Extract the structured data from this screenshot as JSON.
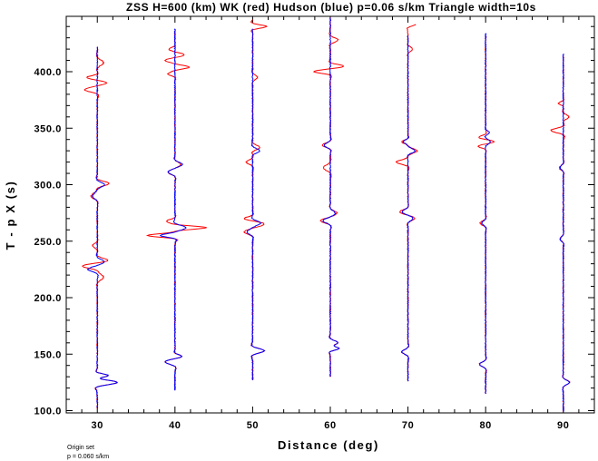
{
  "chart_data": {
    "type": "line",
    "title": "ZSS H=600 (km) WK (red) Hudson (blue) p=0.06 s/km Triangle width=10s",
    "xlabel": "Distance (deg)",
    "ylabel": "T - p X (s)",
    "xlim": [
      26,
      94
    ],
    "ylim": [
      98,
      449
    ],
    "x_ticks": [
      30,
      40,
      50,
      60,
      70,
      80,
      90
    ],
    "x_tick_labels": [
      "30",
      "40",
      "50",
      "60",
      "70",
      "80",
      "90"
    ],
    "y_ticks": [
      100,
      150,
      200,
      250,
      300,
      350,
      400
    ],
    "y_tick_labels": [
      "100.0",
      "150.0",
      "200.0",
      "250.0",
      "300.0",
      "350.0",
      "400.0"
    ],
    "grid": false,
    "footnote": [
      "Origin set",
      "p = 0.060 s/km"
    ],
    "colors": {
      "wk": "#ff0000",
      "hudson": "#0000ff",
      "axes": "#000000"
    },
    "series": [
      {
        "name": "WK (red)",
        "color": "#ff0000",
        "traces": [
          {
            "distance": 30,
            "start": 102,
            "end": 422,
            "events": [
              [
                125,
                2.6,
                4
              ],
              [
                131,
                1.6,
                3
              ],
              [
                218,
                0.8,
                5
              ],
              [
                228,
                -1.8,
                4
              ],
              [
                233,
                1.2,
                4
              ],
              [
                246,
                -0.6,
                4
              ],
              [
                290,
                -0.8,
                5
              ],
              [
                301,
                1.5,
                4
              ],
              [
                384,
                -1.6,
                4
              ],
              [
                390,
                1.0,
                3
              ],
              [
                395,
                -1.3,
                3
              ],
              [
                408,
                0.8,
                5
              ]
            ]
          },
          {
            "distance": 40,
            "start": 118,
            "end": 436,
            "events": [
              [
                143,
                -1.2,
                4
              ],
              [
                148,
                0.8,
                3
              ],
              [
                255,
                -3.5,
                3
              ],
              [
                262,
                4.0,
                3
              ],
              [
                268,
                -1.0,
                3
              ],
              [
                311,
                -0.9,
                4
              ],
              [
                318,
                0.7,
                4
              ],
              [
                398,
                -0.9,
                3
              ],
              [
                404,
                1.8,
                3
              ],
              [
                410,
                -1.2,
                3
              ],
              [
                415,
                1.1,
                3
              ],
              [
                420,
                -0.7,
                3
              ]
            ]
          },
          {
            "distance": 50,
            "start": 127,
            "end": 446,
            "events": [
              [
                153,
                1.5,
                4
              ],
              [
                258,
                -1.0,
                4
              ],
              [
                265,
                1.4,
                4
              ],
              [
                270,
                -1.0,
                3
              ],
              [
                320,
                -0.8,
                4
              ],
              [
                333,
                0.9,
                4
              ],
              [
                395,
                0.6,
                4
              ],
              [
                440,
                1.8,
                3
              ]
            ]
          },
          {
            "distance": 60,
            "start": 130,
            "end": 448,
            "events": [
              [
                155,
                1.2,
                3
              ],
              [
                160,
                1.0,
                4
              ],
              [
                268,
                -1.2,
                4
              ],
              [
                275,
                0.8,
                4
              ],
              [
                315,
                -0.9,
                5
              ],
              [
                335,
                -1.0,
                4
              ],
              [
                400,
                -2.0,
                3
              ],
              [
                405,
                1.6,
                3
              ],
              [
                428,
                1.0,
                4
              ]
            ]
          },
          {
            "distance": 70,
            "start": 126,
            "end": 442,
            "events": [
              [
                152,
                -0.8,
                4
              ],
              [
                270,
                0.8,
                4
              ],
              [
                276,
                -1.0,
                4
              ],
              [
                320,
                -1.5,
                4
              ],
              [
                330,
                1.2,
                4
              ],
              [
                338,
                -0.8,
                3
              ],
              [
                420,
                0.6,
                4
              ],
              [
                442,
                1.0,
                3
              ]
            ]
          },
          {
            "distance": 80,
            "start": 115,
            "end": 432,
            "events": [
              [
                141,
                -0.8,
                4
              ],
              [
                266,
                -0.7,
                4
              ],
              [
                334,
                -0.9,
                3
              ],
              [
                338,
                0.9,
                3
              ],
              [
                342,
                -0.8,
                3
              ]
            ]
          },
          {
            "distance": 90,
            "start": 99,
            "end": 414,
            "events": [
              [
                125,
                0.8,
                4
              ],
              [
                252,
                -0.4,
                4
              ],
              [
                315,
                -0.5,
                4
              ],
              [
                348,
                -1.6,
                4
              ],
              [
                360,
                0.7,
                4
              ],
              [
                372,
                -0.6,
                3
              ]
            ]
          }
        ]
      },
      {
        "name": "Hudson (blue)",
        "color": "#0000ff",
        "traces": [
          {
            "distance": 30,
            "start": 102,
            "end": 422,
            "events": [
              [
                125,
                2.6,
                4
              ],
              [
                131,
                1.6,
                3
              ],
              [
                225,
                -1.2,
                4
              ],
              [
                232,
                0.8,
                4
              ],
              [
                290,
                -0.6,
                5
              ],
              [
                300,
                0.9,
                4
              ]
            ]
          },
          {
            "distance": 40,
            "start": 118,
            "end": 438,
            "events": [
              [
                143,
                -1.2,
                4
              ],
              [
                148,
                0.8,
                3
              ],
              [
                255,
                -1.8,
                3
              ],
              [
                262,
                1.4,
                4
              ],
              [
                311,
                -0.8,
                4
              ],
              [
                318,
                0.9,
                4
              ]
            ]
          },
          {
            "distance": 50,
            "start": 127,
            "end": 438,
            "events": [
              [
                153,
                1.5,
                4
              ],
              [
                258,
                -0.7,
                4
              ],
              [
                266,
                1.0,
                4
              ],
              [
                330,
                0.9,
                4
              ]
            ]
          },
          {
            "distance": 60,
            "start": 130,
            "end": 448,
            "events": [
              [
                155,
                1.2,
                3
              ],
              [
                160,
                1.0,
                4
              ],
              [
                268,
                -0.9,
                4
              ],
              [
                275,
                0.6,
                4
              ],
              [
                335,
                -0.8,
                4
              ]
            ]
          },
          {
            "distance": 70,
            "start": 126,
            "end": 432,
            "events": [
              [
                152,
                -0.8,
                4
              ],
              [
                270,
                0.6,
                4
              ],
              [
                276,
                -0.7,
                4
              ],
              [
                330,
                0.9,
                4
              ],
              [
                338,
                -0.6,
                3
              ]
            ]
          },
          {
            "distance": 80,
            "start": 115,
            "end": 434,
            "events": [
              [
                141,
                -0.8,
                4
              ],
              [
                266,
                -0.5,
                4
              ],
              [
                338,
                0.6,
                4
              ],
              [
                346,
                0.5,
                3
              ]
            ]
          },
          {
            "distance": 90,
            "start": 99,
            "end": 416,
            "events": [
              [
                125,
                0.8,
                4
              ],
              [
                252,
                -0.4,
                4
              ],
              [
                315,
                -0.4,
                4
              ]
            ]
          }
        ]
      }
    ]
  }
}
